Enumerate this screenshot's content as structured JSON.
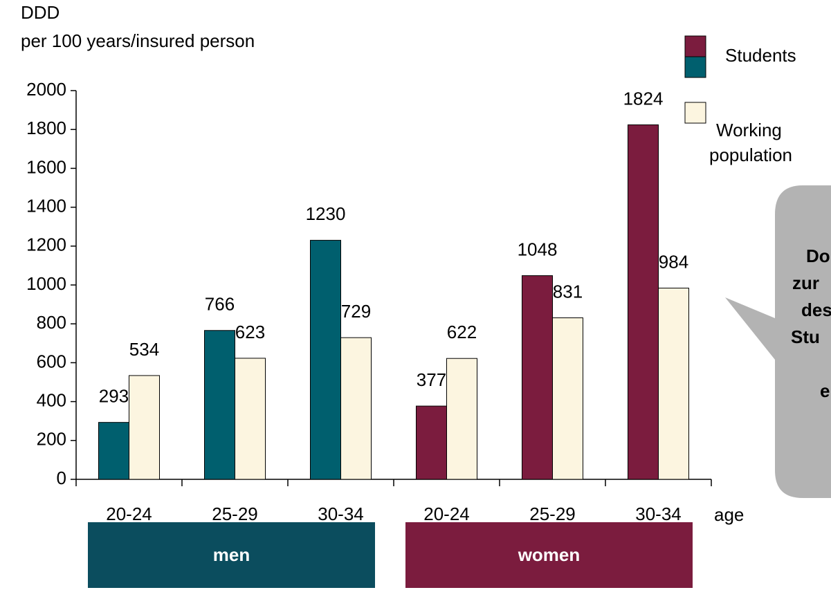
{
  "chart_data": {
    "type": "bar",
    "y_label_lines": [
      "DDD",
      "per 100 years/insured person"
    ],
    "x_label": "age",
    "categories": [
      "20-24",
      "25-29",
      "30-34",
      "20-24",
      "25-29",
      "30-34"
    ],
    "groups": [
      {
        "label": "men",
        "color": "#0b4d5e"
      },
      {
        "label": "women",
        "color": "#7b1c3e"
      }
    ],
    "series": [
      {
        "name": "Students",
        "colors": [
          "#005f6e",
          "#005f6e",
          "#005f6e",
          "#7b1c3e",
          "#7b1c3e",
          "#7b1c3e"
        ],
        "values": [
          293,
          766,
          1230,
          377,
          1048,
          1824
        ]
      },
      {
        "name": "Working population",
        "color": "#fcf5e0",
        "values": [
          534,
          623,
          729,
          622,
          831,
          984
        ]
      }
    ],
    "ylim": [
      0,
      2000
    ],
    "yticks": [
      0,
      200,
      400,
      600,
      800,
      1000,
      1200,
      1400,
      1600,
      1800,
      2000
    ],
    "callout_lines": [
      "Do",
      "zur",
      "des",
      "Stu",
      "e"
    ]
  }
}
